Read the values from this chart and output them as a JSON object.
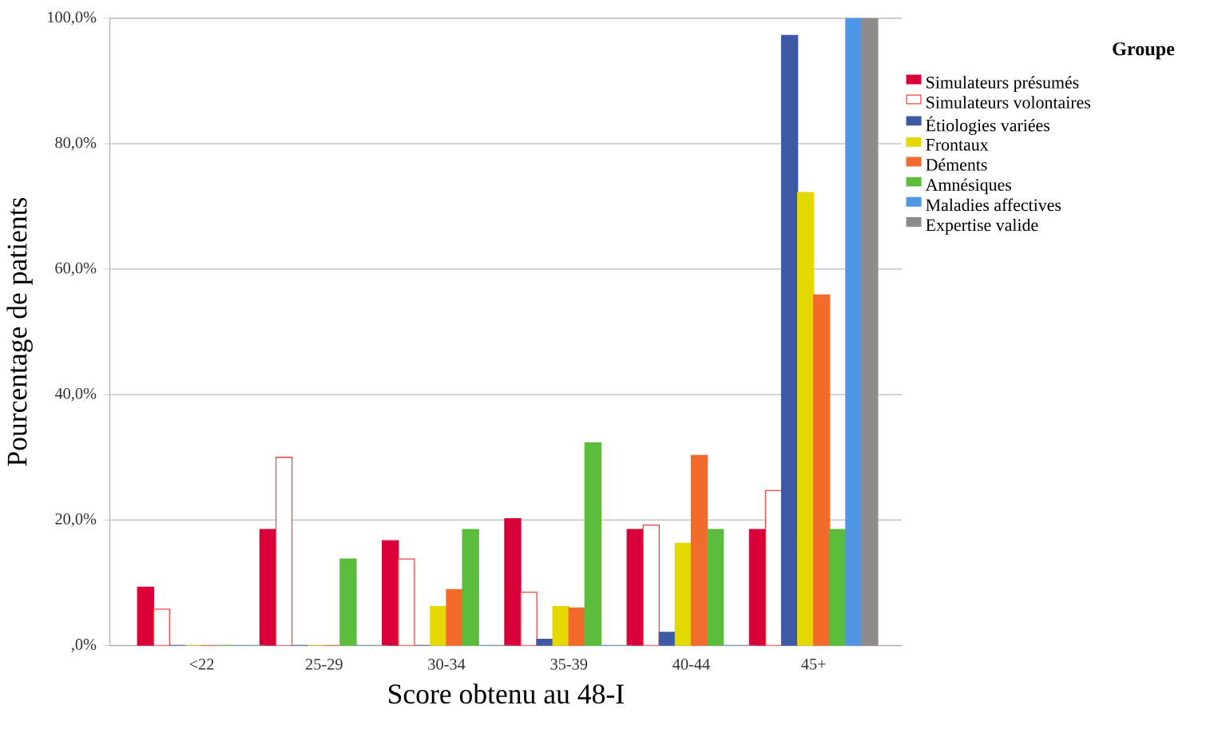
{
  "chart_data": {
    "type": "bar",
    "xlabel": "Score obtenu au 48-I",
    "ylabel": "Pourcentage de patients",
    "legend_title": "Groupe",
    "categories": [
      "<22",
      "25-29",
      "30-34",
      "35-39",
      "40-44",
      "45+"
    ],
    "series": [
      {
        "name": "Simulateurs présumés",
        "color": "#d9003a",
        "values": [
          9.3,
          18.5,
          16.7,
          20.2,
          18.5,
          18.5
        ]
      },
      {
        "name": "Simulateurs volontaires",
        "color": "#ffffff",
        "values": [
          5.8,
          30,
          13.8,
          8.5,
          19.2,
          24.7
        ]
      },
      {
        "name": "Étiologies variées",
        "color": "#3d59a6",
        "values": [
          0,
          0,
          0,
          1,
          2.1,
          97.3
        ]
      },
      {
        "name": "Frontaux",
        "color": "#e5d700",
        "values": [
          0,
          0,
          6.2,
          6.2,
          16.3,
          72.2
        ]
      },
      {
        "name": "Déments",
        "color": "#f26b2a",
        "values": [
          0,
          0,
          8.9,
          6,
          30.3,
          55.9
        ]
      },
      {
        "name": "Amnésiques",
        "color": "#5bbd3b",
        "values": [
          0,
          13.8,
          18.5,
          32.3,
          18.5,
          18.5
        ]
      },
      {
        "name": "Maladies affectives",
        "color": "#4f97e6",
        "values": [
          0,
          0,
          0,
          0,
          0,
          100
        ]
      },
      {
        "name": "Expertise valide",
        "color": "#8f8c8c",
        "values": [
          0,
          0,
          0,
          0,
          0,
          100
        ]
      }
    ],
    "ylim": [
      0,
      100
    ],
    "yticks": [
      {
        "value": 0,
        "label": ",0%"
      },
      {
        "value": 20,
        "label": "20,0%"
      },
      {
        "value": 40,
        "label": "40,0%"
      },
      {
        "value": 60,
        "label": "60,0%"
      },
      {
        "value": 80,
        "label": "80,0%"
      },
      {
        "value": 100,
        "label": "100,0%"
      }
    ],
    "grid": "y",
    "legend": "right"
  }
}
